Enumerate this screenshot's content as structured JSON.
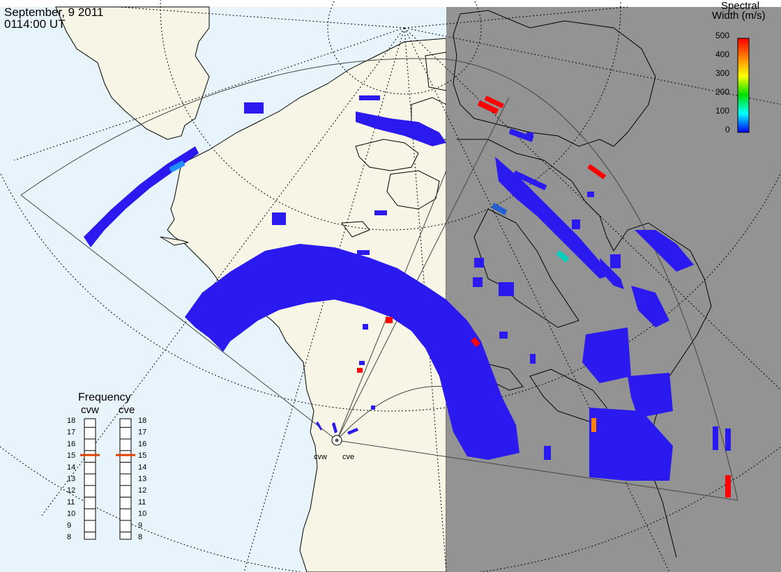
{
  "header": {
    "date": "September, 9 2011",
    "time": "0114:00 UT"
  },
  "colorbar": {
    "title_line1": "Spectral",
    "title_line2": "Width (m/s)",
    "ticks": [
      "500",
      "400",
      "300",
      "200",
      "100",
      "0"
    ],
    "colors": [
      "#ff0000",
      "#ff8000",
      "#ffff00",
      "#00e000",
      "#00ffff",
      "#0000ff"
    ]
  },
  "frequency": {
    "title": "Frequency",
    "radars": [
      {
        "name": "cvw",
        "value": 15
      },
      {
        "name": "cve",
        "value": 15
      }
    ],
    "ticks": [
      "18",
      "17",
      "16",
      "15",
      "14",
      "13",
      "12",
      "11",
      "10",
      "9",
      "8"
    ],
    "indicator_color": "#e04000"
  },
  "map": {
    "site_labels": [
      "cvw",
      "cve"
    ],
    "land_color": "#f7f5e6",
    "ocean_color": "#e8f4fb",
    "night_color": "#939393",
    "echo_color": "#2a1af0"
  }
}
